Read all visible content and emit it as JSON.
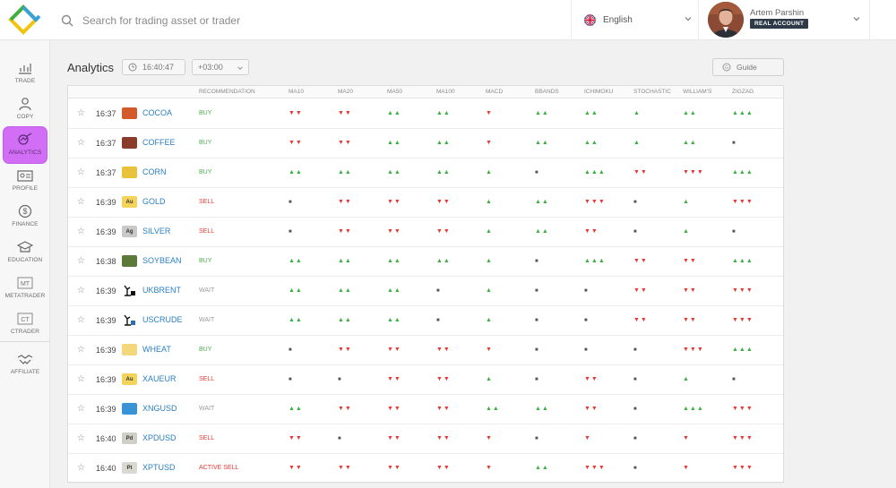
{
  "search": {
    "placeholder": "Search for trading asset or trader"
  },
  "language": {
    "label": "English"
  },
  "user": {
    "name": "Artem Parshin",
    "account_type": "REAL ACCOUNT"
  },
  "sidebar": {
    "items": [
      {
        "label": "TRADE",
        "icon": "chart-bars-icon"
      },
      {
        "label": "COPY",
        "icon": "copy-trader-icon"
      },
      {
        "label": "ANALYTICS",
        "icon": "analytics-icon"
      },
      {
        "label": "PROFILE",
        "icon": "profile-card-icon"
      },
      {
        "label": "FINANCE",
        "icon": "dollar-icon"
      },
      {
        "label": "EDUCATION",
        "icon": "graduation-cap-icon"
      },
      {
        "label": "METATRADER",
        "icon": "mt-icon"
      },
      {
        "label": "CTRADER",
        "icon": "ct-icon"
      },
      {
        "label": "AFFILIATE",
        "icon": "handshake-icon"
      }
    ],
    "active": "ANALYTICS"
  },
  "analytics": {
    "title": "Analytics",
    "clock": "16:40:47",
    "timezone": "+03:00",
    "guide_label": "Guide"
  },
  "table": {
    "headers": [
      "RECOMMENDATION",
      "MA10",
      "MA20",
      "MA50",
      "MA100",
      "MACD",
      "BBANDS",
      "ICHIMOKU",
      "STOCHASTIC",
      "WILLIAM'S",
      "ZIGZAG"
    ],
    "rows": [
      {
        "time": "16:37",
        "asset": "COCOA",
        "icon_text": "",
        "icon_color": "#d35a2a",
        "rec": "BUY",
        "rec_class": "buy",
        "signals": [
          "dd",
          "dd",
          "uu",
          "uu",
          "d",
          "uu",
          "uu",
          "u",
          "uu",
          "uuu"
        ]
      },
      {
        "time": "16:37",
        "asset": "COFFEE",
        "icon_text": "",
        "icon_color": "#8a3b2a",
        "rec": "BUY",
        "rec_class": "buy",
        "signals": [
          "dd",
          "dd",
          "uu",
          "uu",
          "d",
          "uu",
          "uu",
          "u",
          "uu",
          "n"
        ]
      },
      {
        "time": "16:37",
        "asset": "CORN",
        "icon_text": "",
        "icon_color": "#e8c23a",
        "rec": "BUY",
        "rec_class": "buy",
        "signals": [
          "uu",
          "uu",
          "uu",
          "uu",
          "u",
          "n",
          "uuu",
          "dd",
          "ddd",
          "uuu"
        ]
      },
      {
        "time": "16:39",
        "asset": "GOLD",
        "icon_text": "Au",
        "icon_color": "#f3d35a",
        "rec": "SELL",
        "rec_class": "sell",
        "signals": [
          "n",
          "dd",
          "dd",
          "dd",
          "u",
          "uu",
          "ddd",
          "n",
          "u",
          "ddd"
        ]
      },
      {
        "time": "16:39",
        "asset": "SILVER",
        "icon_text": "Ag",
        "icon_color": "#c9c9c9",
        "rec": "SELL",
        "rec_class": "sell",
        "signals": [
          "n",
          "dd",
          "dd",
          "dd",
          "u",
          "uu",
          "dd",
          "n",
          "u",
          "n"
        ]
      },
      {
        "time": "16:38",
        "asset": "SOYBEAN",
        "icon_text": "",
        "icon_color": "#5b7a3a",
        "rec": "BUY",
        "rec_class": "buy",
        "signals": [
          "uu",
          "uu",
          "uu",
          "uu",
          "u",
          "n",
          "uuu",
          "dd",
          "dd",
          "uuu"
        ]
      },
      {
        "time": "16:39",
        "asset": "UKBRENT",
        "icon_text": "",
        "icon_color": "#ffffff",
        "rec": "WAIT",
        "rec_class": "wait",
        "signals": [
          "uu",
          "uu",
          "uu",
          "n",
          "u",
          "n",
          "n",
          "dd",
          "dd",
          "ddd"
        ]
      },
      {
        "time": "16:39",
        "asset": "USCRUDE",
        "icon_text": "",
        "icon_color": "#ffffff",
        "rec": "WAIT",
        "rec_class": "wait",
        "signals": [
          "uu",
          "uu",
          "uu",
          "n",
          "u",
          "n",
          "n",
          "dd",
          "dd",
          "ddd"
        ]
      },
      {
        "time": "16:39",
        "asset": "WHEAT",
        "icon_text": "",
        "icon_color": "#f4d77a",
        "rec": "BUY",
        "rec_class": "buy",
        "signals": [
          "n",
          "dd",
          "dd",
          "dd",
          "d",
          "n",
          "n",
          "n",
          "ddd",
          "uuu"
        ]
      },
      {
        "time": "16:39",
        "asset": "XAUEUR",
        "icon_text": "Au",
        "icon_color": "#f3d35a",
        "rec": "SELL",
        "rec_class": "sell",
        "signals": [
          "n",
          "n",
          "dd",
          "dd",
          "u",
          "n",
          "dd",
          "n",
          "u",
          "n"
        ]
      },
      {
        "time": "16:39",
        "asset": "XNGUSD",
        "icon_text": "",
        "icon_color": "#3a93d6",
        "rec": "WAIT",
        "rec_class": "wait",
        "signals": [
          "uu",
          "dd",
          "dd",
          "dd",
          "uu",
          "uu",
          "dd",
          "n",
          "uuu",
          "ddd"
        ]
      },
      {
        "time": "16:40",
        "asset": "XPDUSD",
        "icon_text": "Pd",
        "icon_color": "#cfcfc6",
        "rec": "SELL",
        "rec_class": "sell",
        "signals": [
          "dd",
          "n",
          "dd",
          "dd",
          "d",
          "n",
          "d",
          "n",
          "d",
          "ddd"
        ]
      },
      {
        "time": "16:40",
        "asset": "XPTUSD",
        "icon_text": "Pt",
        "icon_color": "#d9d9d2",
        "rec": "ACTIVE SELL",
        "rec_class": "sell",
        "signals": [
          "dd",
          "dd",
          "dd",
          "dd",
          "d",
          "uu",
          "ddd",
          "n",
          "d",
          "ddd"
        ]
      }
    ]
  }
}
